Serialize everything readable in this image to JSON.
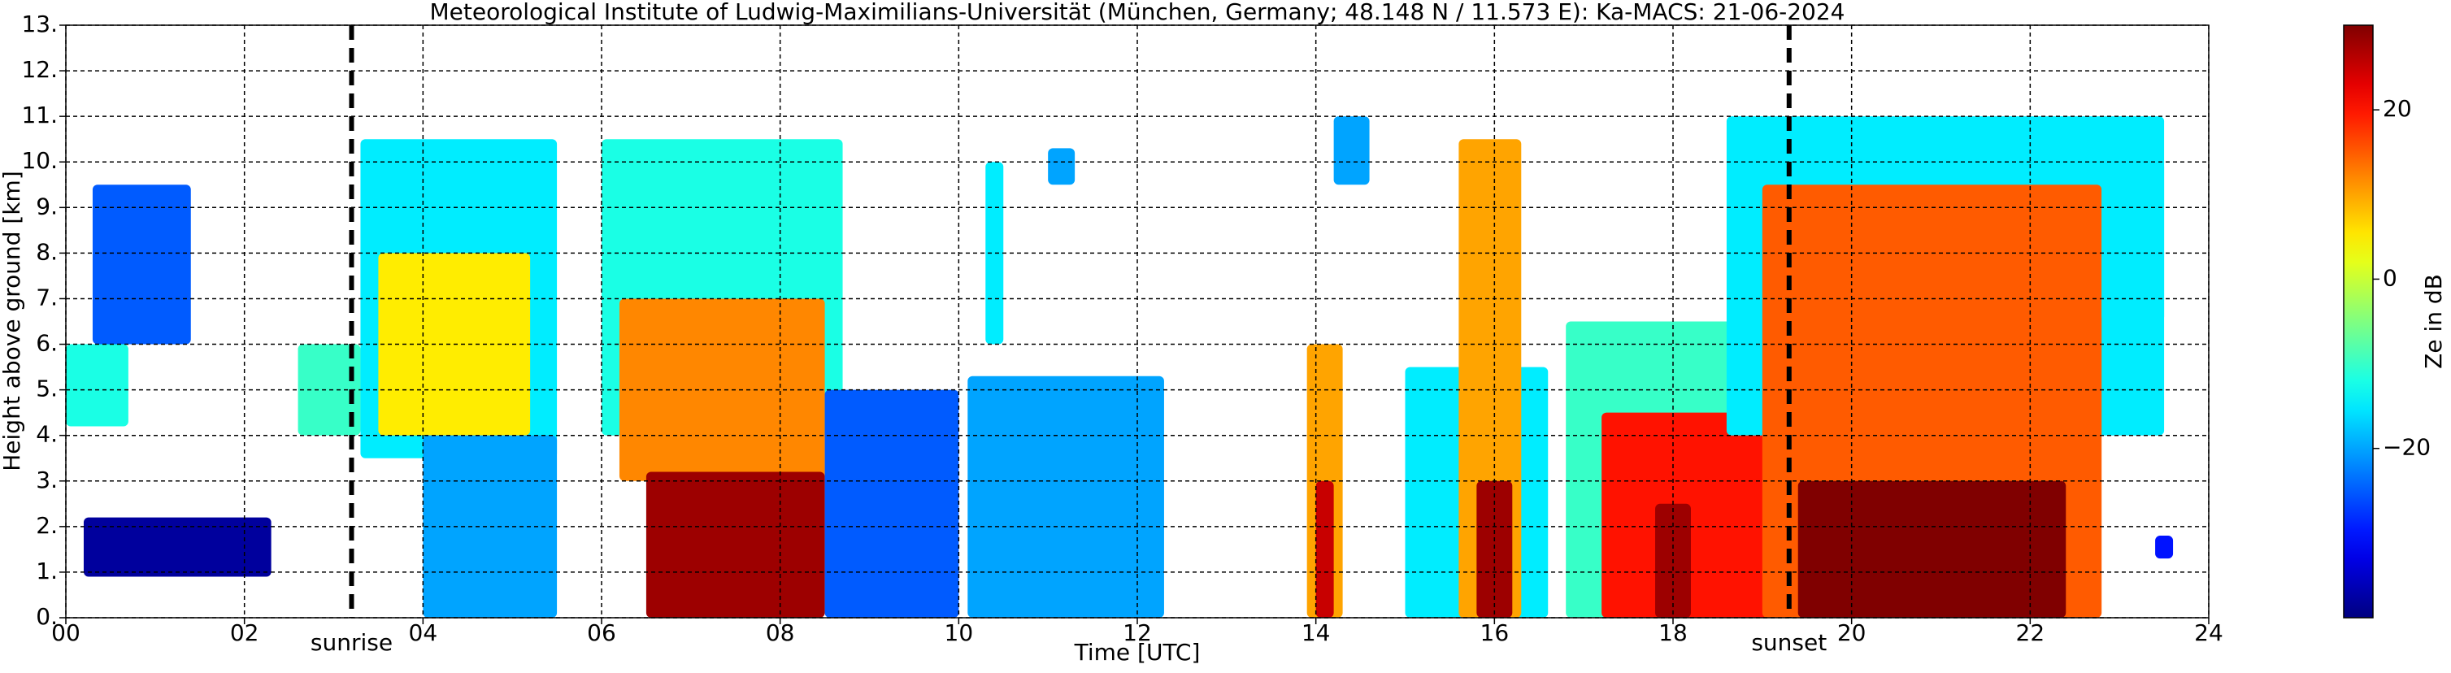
{
  "chart_data": {
    "type": "heatmap",
    "title": "Meteorological Institute of Ludwig-Maximilians-Universität (München, Germany; 48.148 N / 11.573 E):    Ka-MACS: 21-06-2024",
    "xlabel": "Time [UTC]",
    "ylabel": "Height above ground [km]",
    "xlim": [
      0,
      24
    ],
    "ylim": [
      0,
      13
    ],
    "xticks": [
      {
        "value": 0,
        "label": "00"
      },
      {
        "value": 2,
        "label": "02"
      },
      {
        "value": 4,
        "label": "04"
      },
      {
        "value": 6,
        "label": "06"
      },
      {
        "value": 8,
        "label": "08"
      },
      10,
      12,
      14,
      16,
      18,
      20,
      22,
      24
    ],
    "yticks": [
      {
        "value": 0,
        "label": "0."
      },
      {
        "value": 1,
        "label": "1."
      },
      {
        "value": 2,
        "label": "2."
      },
      {
        "value": 3,
        "label": "3."
      },
      {
        "value": 4,
        "label": "4."
      },
      {
        "value": 5,
        "label": "5."
      },
      {
        "value": 6,
        "label": "6."
      },
      {
        "value": 7,
        "label": "7."
      },
      {
        "value": 8,
        "label": "8."
      },
      {
        "value": 9,
        "label": "9."
      },
      {
        "value": 10,
        "label": "10."
      },
      {
        "value": 11,
        "label": "11."
      },
      {
        "value": 12,
        "label": "12."
      },
      {
        "value": 13,
        "label": "13."
      }
    ],
    "grid": true,
    "echoes": [
      [
        0.3,
        1.4,
        6,
        9.5,
        -25
      ],
      [
        0,
        0.7,
        4.2,
        6,
        -12
      ],
      [
        0.2,
        2.3,
        0.9,
        2.2,
        -38
      ],
      [
        2.6,
        3.3,
        4,
        6,
        -10
      ],
      [
        3.3,
        5.5,
        3.5,
        10.5,
        -15
      ],
      [
        3.5,
        5.2,
        4,
        8,
        5
      ],
      [
        4.0,
        5.5,
        0,
        4,
        -20
      ],
      [
        6.0,
        8.7,
        4,
        10.5,
        -12
      ],
      [
        6.2,
        8.5,
        3,
        7,
        12
      ],
      [
        6.5,
        8.5,
        0,
        3.2,
        28
      ],
      [
        8.5,
        10,
        0,
        5,
        -25
      ],
      [
        10.1,
        12.3,
        0,
        5.3,
        -20
      ],
      [
        10.3,
        10.5,
        6,
        10,
        -15
      ],
      [
        11,
        11.3,
        9.5,
        10.3,
        -20
      ],
      [
        13.9,
        14.3,
        0,
        6,
        10
      ],
      [
        14.0,
        14.2,
        0,
        3,
        25
      ],
      [
        14.2,
        14.6,
        9.5,
        11,
        -20
      ],
      [
        15.0,
        16.6,
        0,
        5.5,
        -15
      ],
      [
        15.6,
        16.3,
        0,
        10.5,
        10
      ],
      [
        15.8,
        16.2,
        0,
        3,
        28
      ],
      [
        16.8,
        19.2,
        0,
        6.5,
        -10
      ],
      [
        17.2,
        19.2,
        0,
        4.5,
        20
      ],
      [
        17.8,
        18.2,
        0,
        2.5,
        28
      ],
      [
        18.6,
        23.5,
        4,
        11,
        -15
      ],
      [
        19.0,
        22.8,
        0,
        9.5,
        15
      ],
      [
        19.4,
        22.4,
        0,
        3,
        30
      ],
      [
        22.8,
        23.5,
        6.5,
        10,
        -15
      ],
      [
        23.4,
        23.6,
        1.3,
        1.8,
        -30
      ]
    ],
    "markers": [
      {
        "x": 3.2,
        "label": "sunrise"
      },
      {
        "x": 19.3,
        "label": "sunset"
      }
    ],
    "colorbar": {
      "label": "Ze in dB",
      "lim": [
        -40,
        30
      ],
      "ticks": [
        20,
        0,
        {
          "value": -20,
          "label": "−20"
        }
      ],
      "cmap": "jet"
    }
  }
}
